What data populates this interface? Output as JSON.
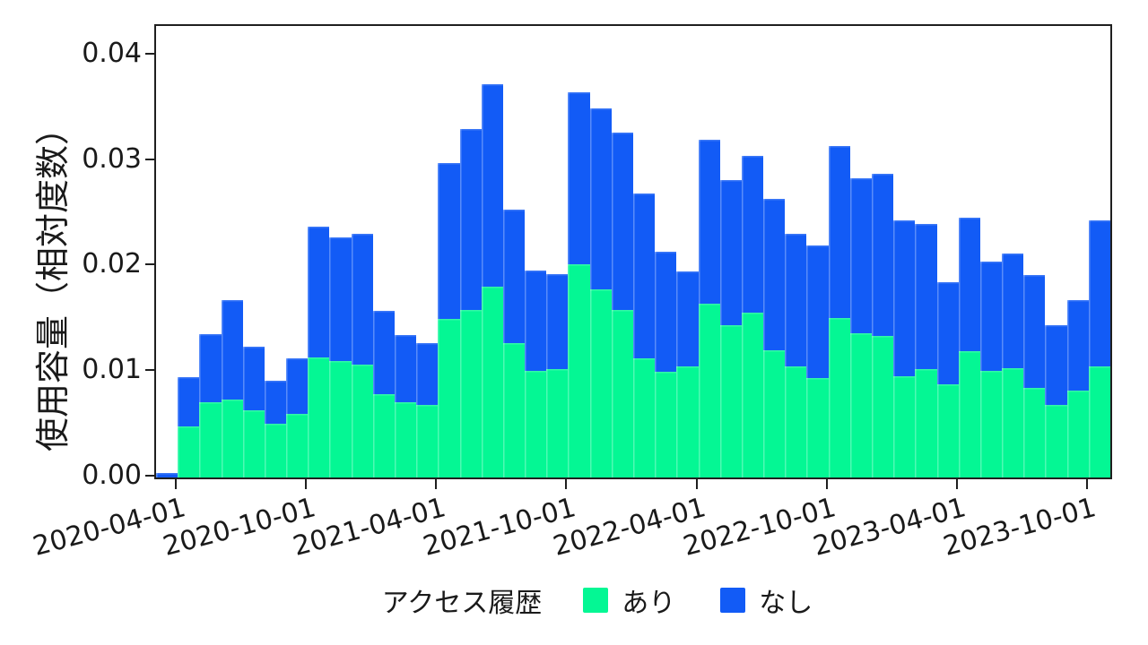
{
  "figure": {
    "background": "#ffffff",
    "spine_color": "#1f1f1f"
  },
  "legend": {
    "title": "アクセス履歴"
  },
  "chart_data": {
    "type": "bar",
    "stacked": true,
    "title": "",
    "xlabel": "",
    "ylabel": "使用容量（相対度数）",
    "grid": false,
    "legend_position": "bottom-center",
    "legend_title": "アクセス履歴",
    "ylim": [
      0,
      0.0428
    ],
    "yticks": [
      {
        "value": 0.0,
        "label": "0.00"
      },
      {
        "value": 0.01,
        "label": "0.01"
      },
      {
        "value": 0.02,
        "label": "0.02"
      },
      {
        "value": 0.03,
        "label": "0.03"
      },
      {
        "value": 0.04,
        "label": "0.04"
      }
    ],
    "x": [
      "2020-03",
      "2020-04",
      "2020-05",
      "2020-06",
      "2020-07",
      "2020-08",
      "2020-09",
      "2020-10",
      "2020-11",
      "2020-12",
      "2021-01",
      "2021-02",
      "2021-03",
      "2021-04",
      "2021-05",
      "2021-06",
      "2021-07",
      "2021-08",
      "2021-09",
      "2021-10",
      "2021-11",
      "2021-12",
      "2022-01",
      "2022-02",
      "2022-03",
      "2022-04",
      "2022-05",
      "2022-06",
      "2022-07",
      "2022-08",
      "2022-09",
      "2022-10",
      "2022-11",
      "2022-12",
      "2023-01",
      "2023-02",
      "2023-03",
      "2023-04",
      "2023-05",
      "2023-06",
      "2023-07",
      "2023-08",
      "2023-09",
      "2023-10"
    ],
    "xticks": [
      {
        "month_index": 1,
        "label": "2020-04-01"
      },
      {
        "month_index": 7,
        "label": "2020-10-01"
      },
      {
        "month_index": 13,
        "label": "2021-04-01"
      },
      {
        "month_index": 19,
        "label": "2021-10-01"
      },
      {
        "month_index": 25,
        "label": "2022-04-01"
      },
      {
        "month_index": 31,
        "label": "2022-10-01"
      },
      {
        "month_index": 37,
        "label": "2023-04-01"
      },
      {
        "month_index": 43,
        "label": "2023-10-01"
      }
    ],
    "series": [
      {
        "name": "あり",
        "color": "#04F794",
        "values": [
          0.0,
          0.0048,
          0.0071,
          0.0074,
          0.0064,
          0.0051,
          0.006,
          0.0114,
          0.011,
          0.0107,
          0.0079,
          0.0071,
          0.0069,
          0.015,
          0.0159,
          0.0181,
          0.0127,
          0.0101,
          0.0103,
          0.0202,
          0.0178,
          0.0159,
          0.0113,
          0.01,
          0.0105,
          0.0165,
          0.0144,
          0.0156,
          0.0121,
          0.0105,
          0.0094,
          0.0151,
          0.0137,
          0.0134,
          0.0096,
          0.0103,
          0.0088,
          0.012,
          0.0101,
          0.0104,
          0.0085,
          0.0069,
          0.0082,
          0.0105
        ]
      },
      {
        "name": "なし",
        "color": "#125BF6",
        "values": [
          0.0004,
          0.0047,
          0.0065,
          0.0094,
          0.006,
          0.0041,
          0.0053,
          0.0124,
          0.0118,
          0.0124,
          0.0079,
          0.0064,
          0.0058,
          0.0148,
          0.0171,
          0.0192,
          0.0127,
          0.0095,
          0.009,
          0.0163,
          0.0172,
          0.0168,
          0.0156,
          0.0114,
          0.009,
          0.0155,
          0.0138,
          0.0149,
          0.0143,
          0.0126,
          0.0126,
          0.0163,
          0.0147,
          0.0154,
          0.0148,
          0.0137,
          0.0097,
          0.0126,
          0.0104,
          0.0108,
          0.0107,
          0.0075,
          0.0086,
          0.0139
        ]
      }
    ]
  }
}
